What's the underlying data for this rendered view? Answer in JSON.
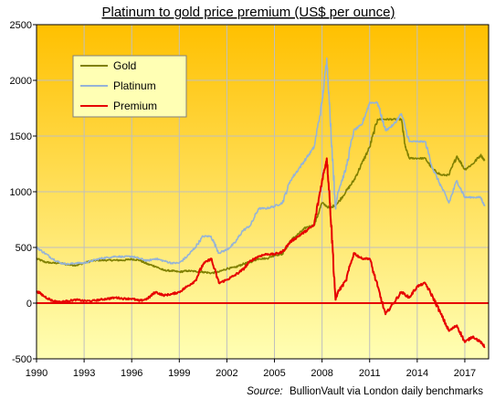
{
  "chart_data": {
    "type": "line",
    "title": "Platinum to gold price premium (US$ per ounce)",
    "source_prefix": "Source:",
    "source_text": "BullionVault via London daily benchmarks",
    "xlabel": "",
    "ylabel": "",
    "xlim": [
      1990,
      2018.5
    ],
    "ylim": [
      -500,
      2500
    ],
    "x_ticks": [
      1990,
      1993,
      1996,
      1999,
      2002,
      2005,
      2008,
      2011,
      2014,
      2017
    ],
    "y_ticks": [
      -500,
      0,
      500,
      1000,
      1500,
      2000,
      2500
    ],
    "grid": true,
    "legend_position": "top-left",
    "background_gradient": [
      "#ffc000",
      "#ffffb4"
    ],
    "zero_line_color": "#e60000",
    "series": [
      {
        "name": "Gold",
        "color": "#808000",
        "x": [
          1990,
          1990.5,
          1991,
          1991.5,
          1992,
          1992.5,
          1993,
          1993.5,
          1994,
          1994.5,
          1995,
          1995.5,
          1996,
          1996.5,
          1997,
          1997.5,
          1998,
          1998.5,
          1999,
          1999.5,
          2000,
          2000.5,
          2001,
          2001.5,
          2002,
          2002.5,
          2003,
          2003.5,
          2004,
          2004.5,
          2005,
          2005.5,
          2006,
          2006.5,
          2007,
          2007.5,
          2008,
          2008.5,
          2009,
          2009.5,
          2010,
          2010.5,
          2011,
          2011.5,
          2012,
          2012.5,
          2013,
          2013.25,
          2013.5,
          2014,
          2014.5,
          2015,
          2015.5,
          2016,
          2016.5,
          2017,
          2017.5,
          2018,
          2018.25
        ],
        "y": [
          400,
          370,
          360,
          360,
          345,
          340,
          360,
          380,
          385,
          385,
          385,
          385,
          395,
          385,
          350,
          330,
          295,
          290,
          280,
          290,
          285,
          280,
          270,
          280,
          310,
          320,
          350,
          370,
          400,
          400,
          430,
          440,
          560,
          620,
          680,
          700,
          900,
          850,
          900,
          1000,
          1100,
          1250,
          1400,
          1650,
          1650,
          1650,
          1650,
          1400,
          1300,
          1300,
          1300,
          1200,
          1150,
          1150,
          1320,
          1200,
          1250,
          1330,
          1280
        ]
      },
      {
        "name": "Platinum",
        "color": "#95b3d7",
        "x": [
          1990,
          1990.5,
          1991,
          1991.5,
          1992,
          1992.5,
          1993,
          1993.5,
          1994,
          1994.5,
          1995,
          1995.5,
          1996,
          1996.5,
          1997,
          1997.5,
          1998,
          1998.5,
          1999,
          1999.5,
          2000,
          2000.5,
          2001,
          2001.5,
          2002,
          2002.5,
          2003,
          2003.5,
          2004,
          2004.5,
          2005,
          2005.5,
          2006,
          2006.5,
          2007,
          2007.5,
          2008,
          2008.3,
          2008.5,
          2008.85,
          2009,
          2009.5,
          2010,
          2010.5,
          2011,
          2011.5,
          2012,
          2012.5,
          2013,
          2013.5,
          2014,
          2014.5,
          2015,
          2015.5,
          2016,
          2016.5,
          2017,
          2017.5,
          2018,
          2018.25
        ],
        "y": [
          500,
          450,
          400,
          360,
          350,
          360,
          360,
          380,
          400,
          410,
          420,
          415,
          420,
          400,
          380,
          400,
          380,
          360,
          360,
          420,
          500,
          600,
          600,
          450,
          480,
          540,
          650,
          700,
          850,
          850,
          870,
          900,
          1100,
          1200,
          1300,
          1400,
          1800,
          2200,
          1700,
          850,
          1000,
          1200,
          1550,
          1600,
          1800,
          1800,
          1550,
          1600,
          1700,
          1450,
          1450,
          1450,
          1200,
          1050,
          900,
          1100,
          950,
          950,
          950,
          870
        ]
      },
      {
        "name": "Premium",
        "color": "#e60000",
        "x": [
          1990,
          1990.5,
          1991,
          1991.5,
          1992,
          1992.5,
          1993,
          1993.5,
          1994,
          1994.5,
          1995,
          1995.5,
          1996,
          1996.5,
          1997,
          1997.5,
          1998,
          1998.5,
          1999,
          1999.5,
          2000,
          2000.5,
          2001,
          2001.5,
          2002,
          2002.5,
          2003,
          2003.5,
          2004,
          2004.5,
          2005,
          2005.5,
          2006,
          2006.5,
          2007,
          2007.5,
          2008,
          2008.3,
          2008.5,
          2008.85,
          2009,
          2009.5,
          2010,
          2010.5,
          2011,
          2011.5,
          2012,
          2012.5,
          2013,
          2013.5,
          2014,
          2014.5,
          2015,
          2015.5,
          2016,
          2016.5,
          2017,
          2017.5,
          2018,
          2018.25
        ],
        "y": [
          110,
          60,
          20,
          10,
          20,
          30,
          20,
          20,
          30,
          40,
          50,
          40,
          40,
          20,
          40,
          100,
          70,
          80,
          100,
          150,
          200,
          350,
          400,
          180,
          210,
          250,
          300,
          380,
          420,
          440,
          440,
          460,
          550,
          600,
          650,
          700,
          1100,
          1300,
          900,
          30,
          100,
          200,
          450,
          400,
          400,
          150,
          -100,
          0,
          100,
          50,
          150,
          180,
          50,
          -100,
          -250,
          -200,
          -350,
          -300,
          -350,
          -390
        ]
      }
    ]
  }
}
